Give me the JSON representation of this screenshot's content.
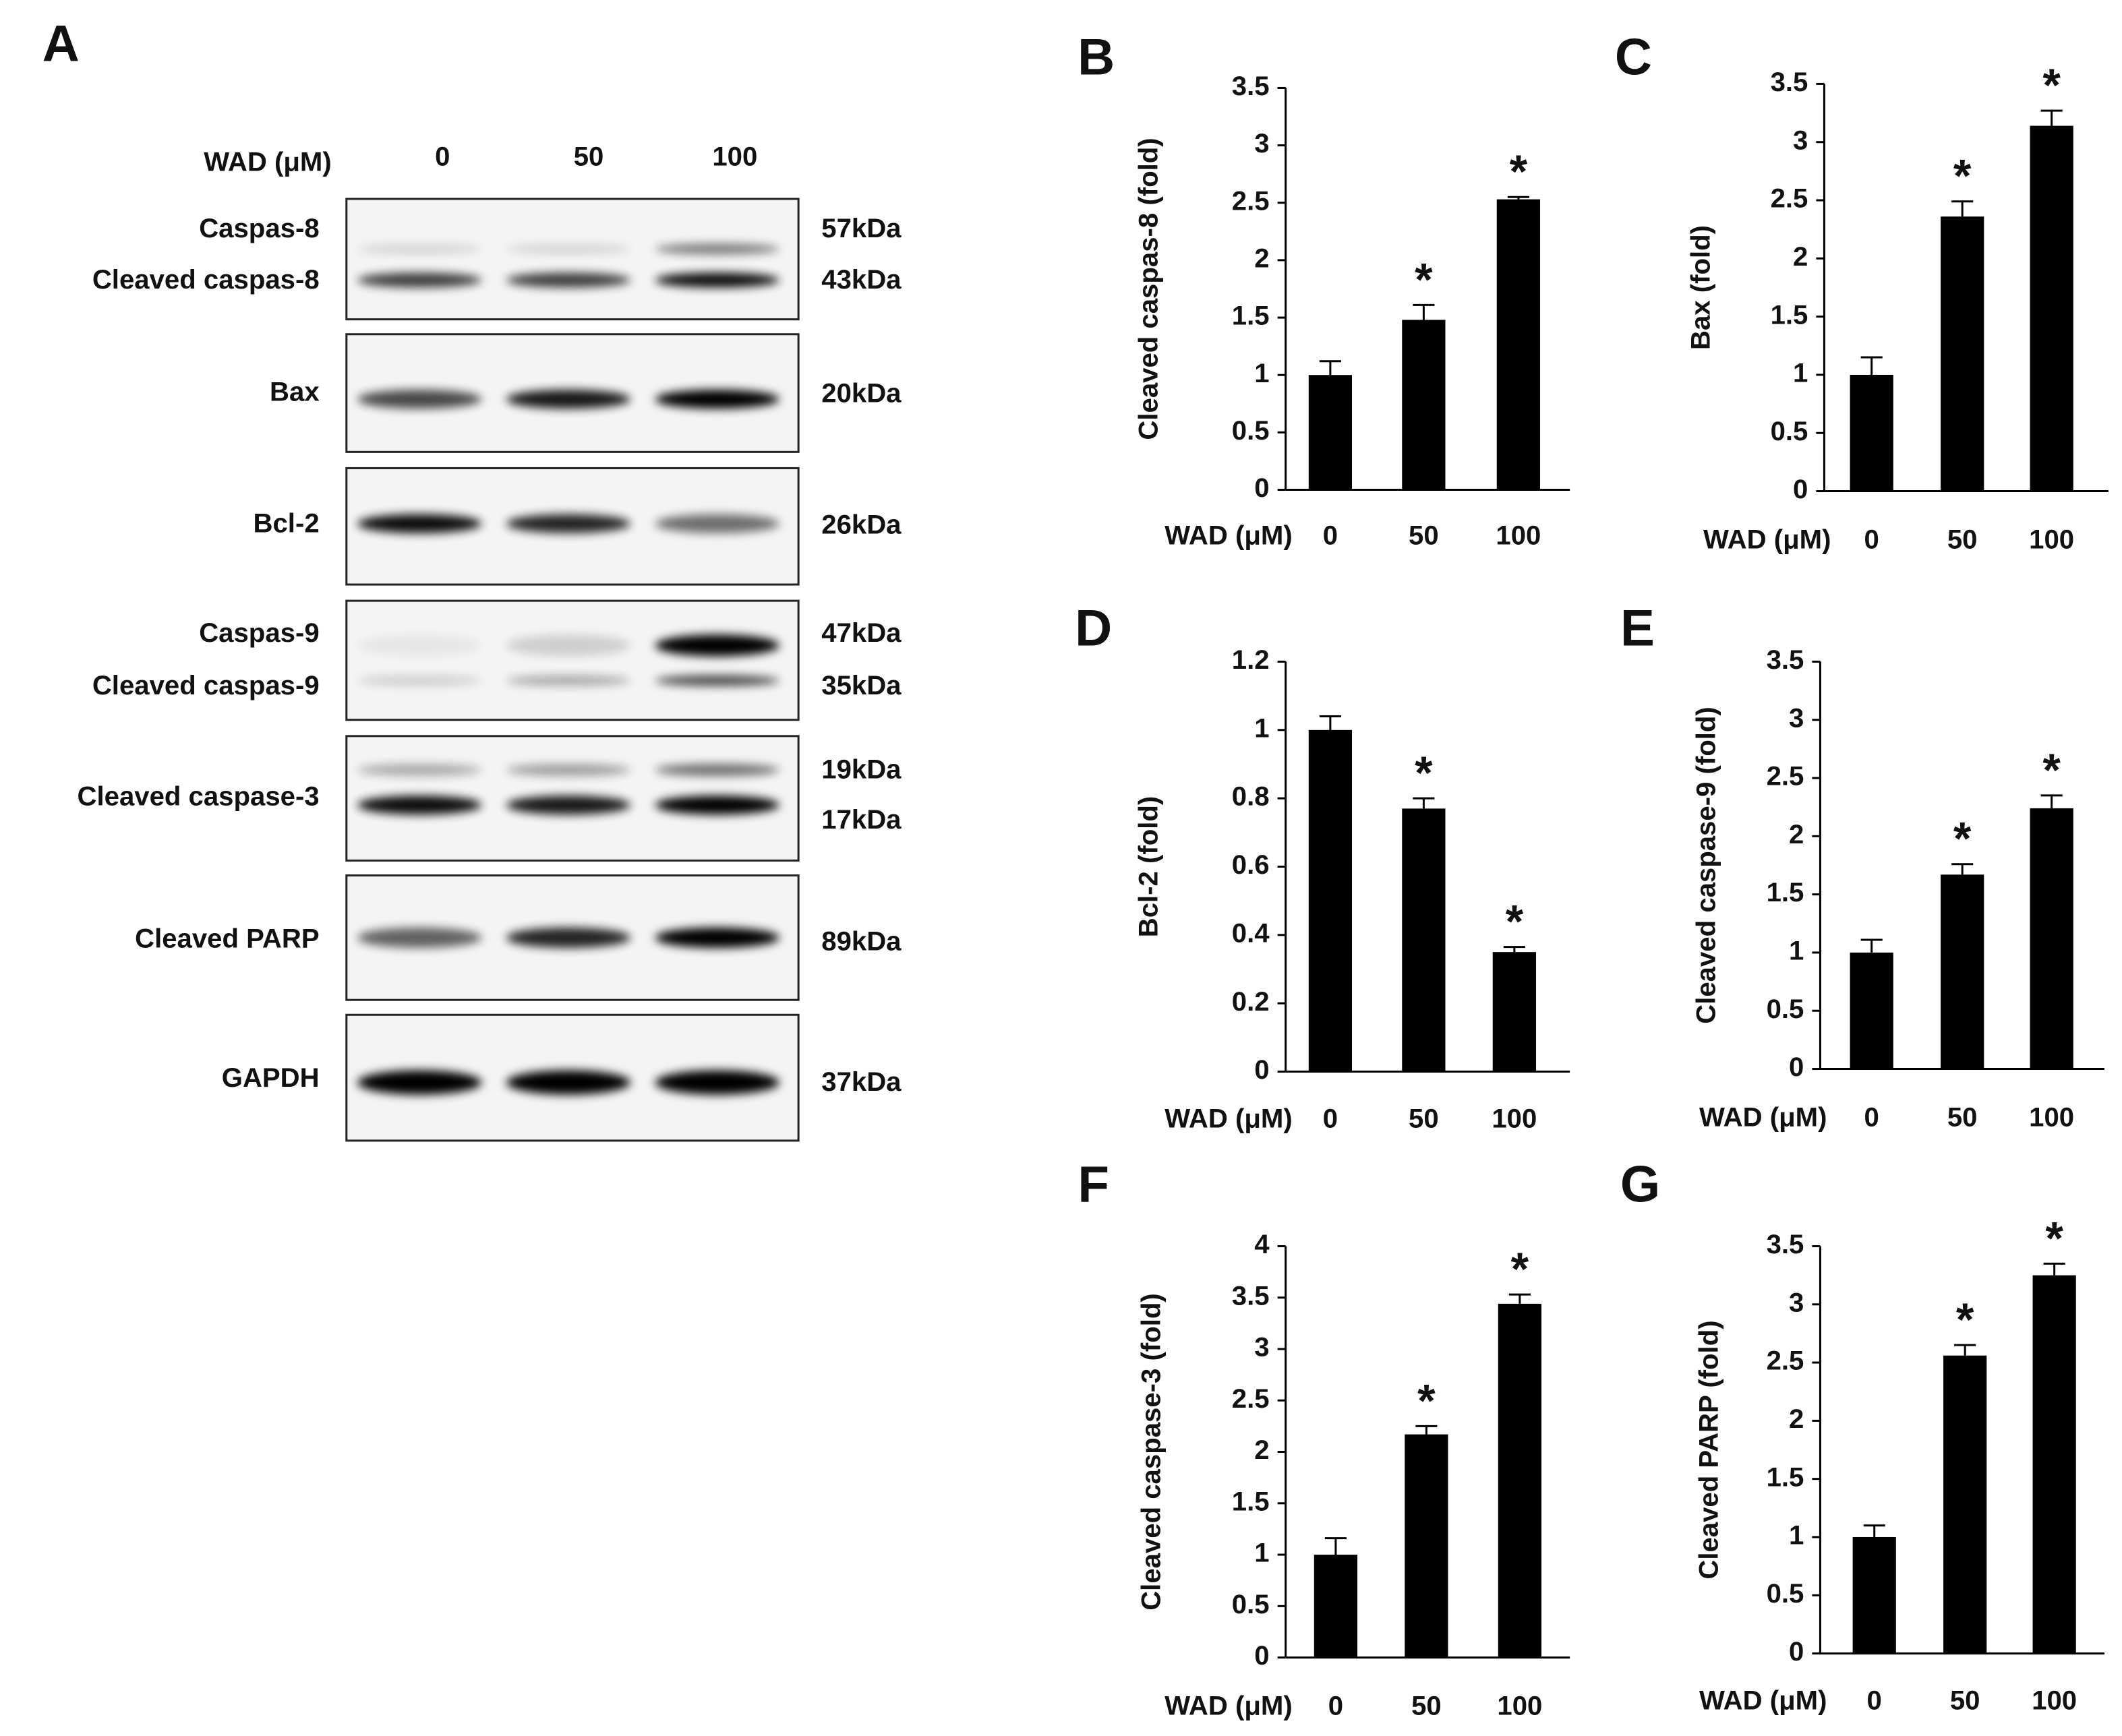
{
  "blot": {
    "panel": "A",
    "treatment_label": "WAD (μM)",
    "lanes": [
      "0",
      "50",
      "100"
    ],
    "rows": [
      {
        "labels": [
          "Caspas-8",
          "Cleaved caspas-8"
        ],
        "sizes": [
          "57kDa",
          "43kDa"
        ]
      },
      {
        "labels": [
          "Bax"
        ],
        "sizes": [
          "20kDa"
        ]
      },
      {
        "labels": [
          "Bcl-2"
        ],
        "sizes": [
          "26kDa"
        ]
      },
      {
        "labels": [
          "Caspas-9",
          "Cleaved caspas-9"
        ],
        "sizes": [
          "47kDa",
          "35kDa"
        ]
      },
      {
        "labels": [
          "Cleaved caspase-3"
        ],
        "sizes": [
          "19kDa",
          "17kDa"
        ]
      },
      {
        "labels": [
          "Cleaved PARP"
        ],
        "sizes": [
          "89kDa"
        ]
      },
      {
        "labels": [
          "GAPDH"
        ],
        "sizes": [
          "37kDa"
        ]
      }
    ]
  },
  "chart_data": [
    {
      "type": "bar",
      "panel": "B",
      "ylabel": "Cleaved caspas-8 (fold)",
      "xlabel": "WAD (μM)",
      "categories": [
        "0",
        "50",
        "100"
      ],
      "values": [
        1.0,
        1.48,
        2.53
      ],
      "errors": [
        0.12,
        0.13,
        0.02
      ],
      "significance": [
        null,
        "*",
        "*"
      ],
      "color": "#000000",
      "ylim": [
        0,
        3.5
      ],
      "yticks": [
        0,
        0.5,
        1,
        1.5,
        2,
        2.5,
        3,
        3.5
      ]
    },
    {
      "type": "bar",
      "panel": "C",
      "ylabel": "Bax (fold)",
      "xlabel": "WAD (μM)",
      "categories": [
        "0",
        "50",
        "100"
      ],
      "values": [
        1.0,
        2.36,
        3.14
      ],
      "errors": [
        0.15,
        0.13,
        0.13
      ],
      "significance": [
        null,
        "*",
        "*"
      ],
      "color": "#000000",
      "ylim": [
        0,
        3.5
      ],
      "yticks": [
        0,
        0.5,
        1,
        1.5,
        2,
        2.5,
        3,
        3.5
      ]
    },
    {
      "type": "bar",
      "panel": "D",
      "ylabel": "Bcl-2 (fold)",
      "xlabel": "WAD (μM)",
      "categories": [
        "0",
        "50",
        "100"
      ],
      "values": [
        1.0,
        0.77,
        0.35
      ],
      "errors": [
        0.04,
        0.03,
        0.015
      ],
      "significance": [
        null,
        "*",
        "*"
      ],
      "color": "#000000",
      "ylim": [
        0,
        1.2
      ],
      "yticks": [
        0,
        0.2,
        0.4,
        0.6,
        0.8,
        1,
        1.2
      ]
    },
    {
      "type": "bar",
      "panel": "E",
      "ylabel": "Cleaved caspase-9 (fold)",
      "xlabel": "WAD (μM)",
      "categories": [
        "0",
        "50",
        "100"
      ],
      "values": [
        1.0,
        1.67,
        2.24
      ],
      "errors": [
        0.11,
        0.09,
        0.11
      ],
      "significance": [
        null,
        "*",
        "*"
      ],
      "color": "#000000",
      "ylim": [
        0,
        3.5
      ],
      "yticks": [
        0,
        0.5,
        1,
        1.5,
        2,
        2.5,
        3,
        3.5
      ]
    },
    {
      "type": "bar",
      "panel": "F",
      "ylabel": "Cleaved caspase-3 (fold)",
      "xlabel": "WAD (μM)",
      "categories": [
        "0",
        "50",
        "100"
      ],
      "values": [
        1.0,
        2.17,
        3.44
      ],
      "errors": [
        0.16,
        0.08,
        0.09
      ],
      "significance": [
        null,
        "*",
        "*"
      ],
      "color": "#000000",
      "ylim": [
        0,
        4
      ],
      "yticks": [
        0,
        0.5,
        1,
        1.5,
        2,
        2.5,
        3,
        3.5,
        4
      ]
    },
    {
      "type": "bar",
      "panel": "G",
      "ylabel": "Cleaved PARP (fold)",
      "xlabel": "WAD (μM)",
      "categories": [
        "0",
        "50",
        "100"
      ],
      "values": [
        1.0,
        2.56,
        3.25
      ],
      "errors": [
        0.1,
        0.09,
        0.1
      ],
      "significance": [
        null,
        "*",
        "*"
      ],
      "color": "#000000",
      "ylim": [
        0,
        3.5
      ],
      "yticks": [
        0,
        0.5,
        1,
        1.5,
        2,
        2.5,
        3,
        3.5
      ]
    }
  ]
}
